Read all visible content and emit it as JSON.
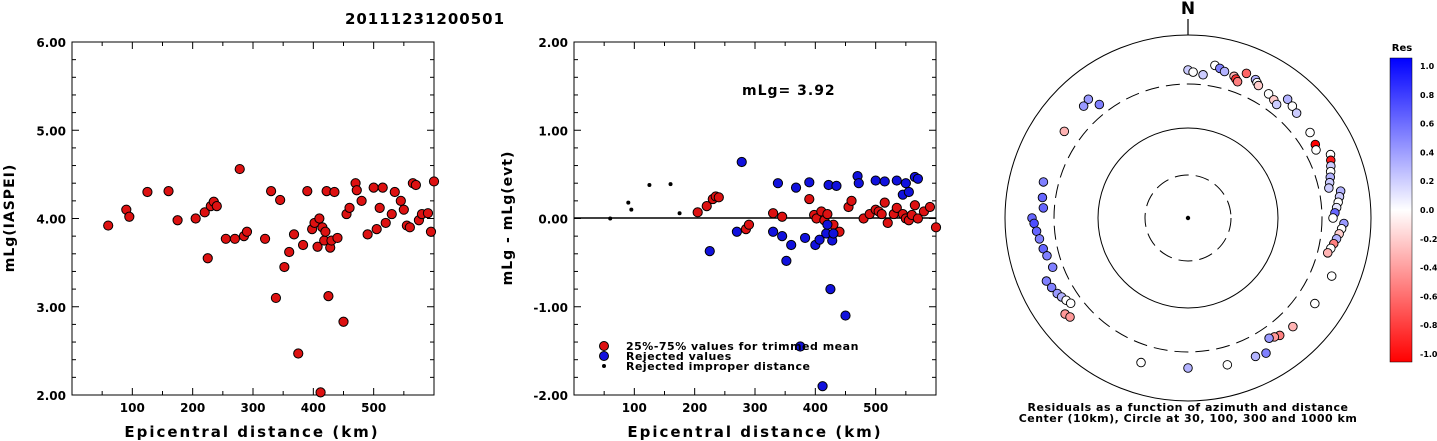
{
  "title": "20111231200501",
  "chart_data": [
    {
      "type": "scatter",
      "xlabel": "Epicentral distance (km)",
      "ylabel": "mLg(IASPEI)",
      "xlim": [
        0,
        600
      ],
      "ylim": [
        2.0,
        6.0
      ],
      "xticks": [
        100,
        200,
        300,
        400,
        500
      ],
      "xtick_labels": [
        "100",
        "200",
        "300",
        "400",
        "500"
      ],
      "yticks": [
        2.0,
        3.0,
        4.0,
        5.0,
        6.0
      ],
      "ytick_labels": [
        "2.00",
        "3.00",
        "4.00",
        "5.00",
        "6.00"
      ],
      "series": [
        {
          "color": "#dd1111",
          "points": [
            [
              60,
              3.92
            ],
            [
              90,
              4.1
            ],
            [
              95,
              4.02
            ],
            [
              125,
              4.3
            ],
            [
              160,
              4.31
            ],
            [
              175,
              3.98
            ],
            [
              205,
              4.0
            ],
            [
              220,
              4.07
            ],
            [
              225,
              3.55
            ],
            [
              230,
              4.14
            ],
            [
              235,
              4.19
            ],
            [
              240,
              4.14
            ],
            [
              255,
              3.77
            ],
            [
              270,
              3.77
            ],
            [
              278,
              4.56
            ],
            [
              285,
              3.8
            ],
            [
              290,
              3.85
            ],
            [
              320,
              3.77
            ],
            [
              330,
              4.31
            ],
            [
              338,
              3.1
            ],
            [
              345,
              4.21
            ],
            [
              352,
              3.45
            ],
            [
              360,
              3.62
            ],
            [
              368,
              3.82
            ],
            [
              375,
              2.47
            ],
            [
              383,
              3.7
            ],
            [
              390,
              4.31
            ],
            [
              398,
              3.88
            ],
            [
              402,
              3.95
            ],
            [
              407,
              3.68
            ],
            [
              410,
              4.0
            ],
            [
              412,
              2.03
            ],
            [
              415,
              3.9
            ],
            [
              418,
              3.75
            ],
            [
              420,
              3.85
            ],
            [
              422,
              4.31
            ],
            [
              425,
              3.12
            ],
            [
              428,
              3.67
            ],
            [
              430,
              3.75
            ],
            [
              435,
              4.3
            ],
            [
              440,
              3.78
            ],
            [
              450,
              2.83
            ],
            [
              455,
              4.05
            ],
            [
              460,
              4.12
            ],
            [
              470,
              4.4
            ],
            [
              472,
              4.32
            ],
            [
              480,
              4.2
            ],
            [
              490,
              3.82
            ],
            [
              500,
              4.35
            ],
            [
              505,
              3.88
            ],
            [
              510,
              4.12
            ],
            [
              515,
              4.35
            ],
            [
              520,
              3.95
            ],
            [
              530,
              4.05
            ],
            [
              535,
              4.3
            ],
            [
              545,
              4.2
            ],
            [
              550,
              4.1
            ],
            [
              555,
              3.92
            ],
            [
              560,
              3.9
            ],
            [
              565,
              4.4
            ],
            [
              570,
              4.38
            ],
            [
              575,
              3.98
            ],
            [
              580,
              4.05
            ],
            [
              590,
              4.06
            ],
            [
              595,
              3.85
            ],
            [
              600,
              4.42
            ]
          ]
        }
      ]
    },
    {
      "type": "scatter",
      "xlabel": "Epicentral distance (km)",
      "ylabel": "mLg - mLg(evt)",
      "annotation": "mLg= 3.92",
      "xlim": [
        0,
        600
      ],
      "ylim": [
        -2.0,
        2.0
      ],
      "xticks": [
        100,
        200,
        300,
        400,
        500
      ],
      "xtick_labels": [
        "100",
        "200",
        "300",
        "400",
        "500"
      ],
      "yticks": [
        -2.0,
        -1.0,
        0.0,
        1.0,
        2.0
      ],
      "ytick_labels": [
        "-2.00",
        "-1.00",
        "0.00",
        "1.00",
        "2.00"
      ],
      "zero_line": true,
      "legend": [
        "25%-75% values for trimmed mean",
        "Rejected values",
        "Rejected improper distance"
      ],
      "legend_position": "bottom-left",
      "series": [
        {
          "color": "#dd1111",
          "points": [
            [
              205,
              0.07
            ],
            [
              220,
              0.14
            ],
            [
              230,
              0.22
            ],
            [
              235,
              0.25
            ],
            [
              240,
              0.24
            ],
            [
              285,
              -0.12
            ],
            [
              290,
              -0.07
            ],
            [
              330,
              0.06
            ],
            [
              345,
              0.02
            ],
            [
              390,
              0.22
            ],
            [
              398,
              0.04
            ],
            [
              402,
              0.0
            ],
            [
              410,
              0.08
            ],
            [
              415,
              -0.02
            ],
            [
              420,
              0.05
            ],
            [
              430,
              -0.07
            ],
            [
              440,
              -0.15
            ],
            [
              455,
              0.13
            ],
            [
              460,
              0.2
            ],
            [
              480,
              0.0
            ],
            [
              490,
              0.05
            ],
            [
              500,
              0.1
            ],
            [
              505,
              0.08
            ],
            [
              510,
              0.05
            ],
            [
              515,
              0.18
            ],
            [
              520,
              -0.05
            ],
            [
              530,
              0.05
            ],
            [
              535,
              0.12
            ],
            [
              545,
              0.05
            ],
            [
              550,
              0.0
            ],
            [
              555,
              -0.02
            ],
            [
              560,
              0.04
            ],
            [
              565,
              0.15
            ],
            [
              570,
              0.0
            ],
            [
              580,
              0.08
            ],
            [
              590,
              0.13
            ],
            [
              600,
              -0.1
            ]
          ]
        },
        {
          "color": "#1111dd",
          "points": [
            [
              225,
              -0.37
            ],
            [
              270,
              -0.15
            ],
            [
              278,
              0.64
            ],
            [
              330,
              -0.15
            ],
            [
              338,
              0.4
            ],
            [
              345,
              -0.2
            ],
            [
              352,
              -0.48
            ],
            [
              360,
              -0.3
            ],
            [
              368,
              0.35
            ],
            [
              375,
              -1.45
            ],
            [
              383,
              -0.22
            ],
            [
              390,
              0.41
            ],
            [
              400,
              -0.3
            ],
            [
              407,
              -0.24
            ],
            [
              412,
              -1.9
            ],
            [
              418,
              -0.17
            ],
            [
              420,
              -0.07
            ],
            [
              422,
              0.38
            ],
            [
              425,
              -0.8
            ],
            [
              428,
              -0.25
            ],
            [
              430,
              -0.17
            ],
            [
              435,
              0.37
            ],
            [
              450,
              -1.1
            ],
            [
              470,
              0.48
            ],
            [
              472,
              0.4
            ],
            [
              500,
              0.43
            ],
            [
              515,
              0.42
            ],
            [
              535,
              0.43
            ],
            [
              545,
              0.27
            ],
            [
              550,
              0.4
            ],
            [
              555,
              0.3
            ],
            [
              565,
              0.47
            ],
            [
              570,
              0.45
            ]
          ]
        },
        {
          "color": "#000000",
          "points": [
            [
              60,
              0.0
            ],
            [
              90,
              0.18
            ],
            [
              95,
              0.1
            ],
            [
              125,
              0.38
            ],
            [
              160,
              0.39
            ],
            [
              175,
              0.06
            ]
          ]
        }
      ]
    },
    {
      "type": "scatter",
      "title": "N",
      "caption": [
        "Residuals as a function of azimuth and distance",
        "Center (10km), Circle at 30, 100, 300 and 1000 km"
      ],
      "colorbar": {
        "title": "Res",
        "ticks": [
          "1.0",
          "0.8",
          "0.6",
          "0.4",
          "0.2",
          "0.0",
          "-0.2",
          "-0.4",
          "-0.6",
          "-0.8",
          "-1.0"
        ],
        "range": [
          -1.0,
          1.0
        ]
      },
      "polar_points": [
        [
          322,
          0.5
        ],
        [
          320,
          0.4
        ],
        [
          317,
          0.4
        ],
        [
          305,
          -0.3
        ],
        [
          284,
          0.5
        ],
        [
          278,
          0.6
        ],
        [
          274,
          0.6
        ],
        [
          270,
          0.6
        ],
        [
          268,
          0.7
        ],
        [
          265,
          0.6
        ],
        [
          262,
          0.5
        ],
        [
          258,
          0.6
        ],
        [
          255,
          0.5
        ],
        [
          250,
          0.5
        ],
        [
          246,
          0.5
        ],
        [
          243,
          0.5
        ],
        [
          240,
          0.4
        ],
        [
          238,
          0.3
        ],
        [
          236,
          0.0
        ],
        [
          234,
          0.0
        ],
        [
          232,
          -0.4
        ],
        [
          230,
          -0.4
        ],
        [
          198,
          0.0
        ],
        [
          180,
          0.3
        ],
        [
          0,
          0.2
        ],
        [
          2,
          0.0
        ],
        [
          6,
          0.2
        ],
        [
          10,
          0.0
        ],
        [
          12,
          0.5
        ],
        [
          14,
          0.3
        ],
        [
          18,
          -0.3
        ],
        [
          19,
          -0.8
        ],
        [
          20,
          -0.5
        ],
        [
          22,
          -0.6
        ],
        [
          26,
          0.3
        ],
        [
          27,
          0.0
        ],
        [
          28,
          -0.2
        ],
        [
          33,
          0.0
        ],
        [
          36,
          -0.2
        ],
        [
          38,
          0.2
        ],
        [
          40,
          0.3
        ],
        [
          43,
          0.0
        ],
        [
          46,
          0.2
        ],
        [
          55,
          0.0
        ],
        [
          60,
          -1.0
        ],
        [
          62,
          0.0
        ],
        [
          66,
          0.0
        ],
        [
          68,
          -0.9
        ],
        [
          70,
          0.2
        ],
        [
          72,
          0.0
        ],
        [
          74,
          0.3
        ],
        [
          76,
          0.2
        ],
        [
          78,
          0.2
        ],
        [
          80,
          0.3
        ],
        [
          82,
          0.2
        ],
        [
          84,
          0.0
        ],
        [
          86,
          0.1
        ],
        [
          88,
          0.6
        ],
        [
          90,
          0.0
        ],
        [
          92,
          0.4
        ],
        [
          94,
          0.0
        ],
        [
          96,
          -0.2
        ],
        [
          98,
          0.3
        ],
        [
          100,
          -0.5
        ],
        [
          102,
          0.0
        ],
        [
          104,
          -0.3
        ],
        [
          112,
          0.0
        ],
        [
          124,
          0.0
        ],
        [
          136,
          -0.3
        ],
        [
          142,
          -0.5
        ],
        [
          144,
          -0.4
        ],
        [
          146,
          0.4
        ],
        [
          150,
          0.5
        ],
        [
          154,
          0.3
        ],
        [
          165,
          0.0
        ]
      ]
    }
  ]
}
